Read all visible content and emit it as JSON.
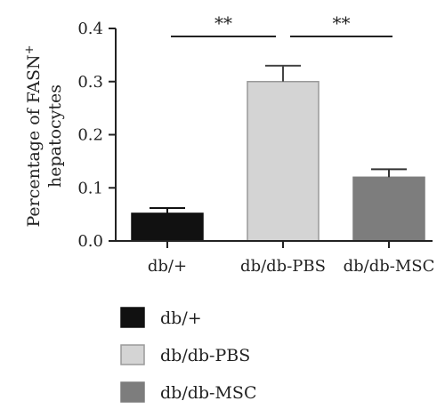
{
  "chart_data": {
    "type": "bar",
    "title": "",
    "xlabel": "",
    "ylabel": {
      "line1": "Percentage of FASN",
      "superscript": "+",
      "line2": "hepatocytes"
    },
    "ylim": [
      0,
      0.4
    ],
    "yticks": [
      {
        "value": 0.0,
        "label": "0.0"
      },
      {
        "value": 0.1,
        "label": "0.1"
      },
      {
        "value": 0.2,
        "label": "0.2"
      },
      {
        "value": 0.3,
        "label": "0.3"
      },
      {
        "value": 0.4,
        "label": "0.4"
      }
    ],
    "categories": [
      "db/+",
      "db/db-PBS",
      "db/db-MSC"
    ],
    "values": [
      0.052,
      0.3,
      0.12
    ],
    "errors": [
      0.01,
      0.03,
      0.015
    ],
    "colors": [
      "#111111",
      "#d4d4d4",
      "#7d7d7d"
    ],
    "significance": [
      {
        "from": 0,
        "to": 1,
        "label": "**"
      },
      {
        "from": 1,
        "to": 2,
        "label": "**"
      }
    ],
    "legend": {
      "placement": "bottom-left",
      "entries": [
        "db/+",
        "db/db-PBS",
        "db/db-MSC"
      ]
    }
  }
}
